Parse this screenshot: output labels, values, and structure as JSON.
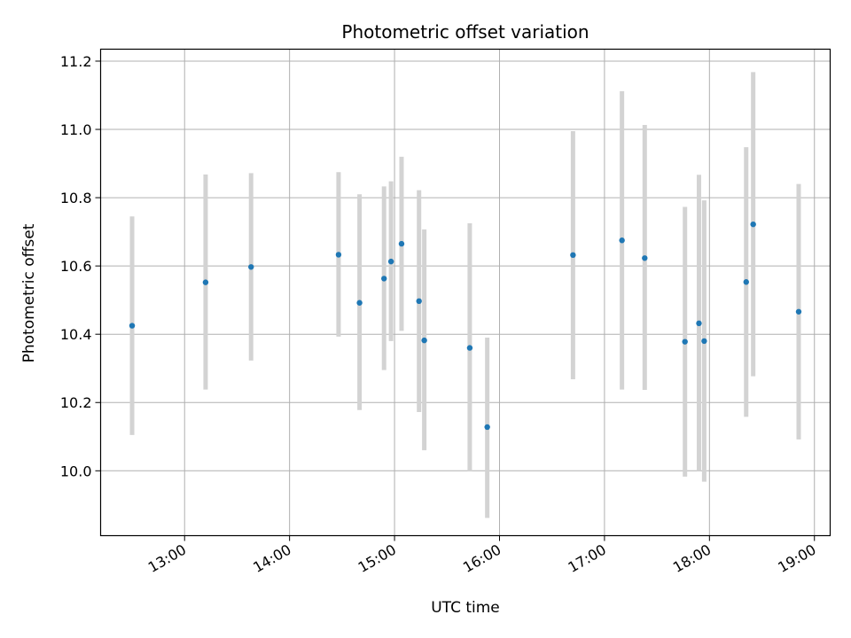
{
  "chart_data": {
    "type": "scatter",
    "title": "Photometric offset variation",
    "xlabel": "UTC time",
    "ylabel": "Photometric offset",
    "x_ticks": [
      "13:00",
      "14:00",
      "15:00",
      "16:00",
      "17:00",
      "18:00",
      "19:00"
    ],
    "y_ticks": [
      "10.0",
      "10.2",
      "10.4",
      "10.6",
      "10.8",
      "11.0",
      "11.2"
    ],
    "xlim": [
      "12:12",
      "19:09"
    ],
    "ylim": [
      9.81,
      11.235
    ],
    "grid": true,
    "colors": {
      "point": "#1f77b4",
      "errorbar": "#d3d3d3",
      "grid": "#b0b0b0"
    },
    "series": [
      {
        "points": [
          {
            "x": "12:30",
            "y": 10.425,
            "low": 10.105,
            "high": 10.745
          },
          {
            "x": "13:12",
            "y": 10.552,
            "low": 10.238,
            "high": 10.868
          },
          {
            "x": "13:38",
            "y": 10.597,
            "low": 10.323,
            "high": 10.872
          },
          {
            "x": "14:28",
            "y": 10.633,
            "low": 10.393,
            "high": 10.875
          },
          {
            "x": "14:40",
            "y": 10.492,
            "low": 10.178,
            "high": 10.81
          },
          {
            "x": "14:54",
            "y": 10.563,
            "low": 10.295,
            "high": 10.833
          },
          {
            "x": "14:58",
            "y": 10.613,
            "low": 10.38,
            "high": 10.848
          },
          {
            "x": "15:04",
            "y": 10.665,
            "low": 10.41,
            "high": 10.92
          },
          {
            "x": "15:14",
            "y": 10.497,
            "low": 10.172,
            "high": 10.822
          },
          {
            "x": "15:17",
            "y": 10.382,
            "low": 10.06,
            "high": 10.707
          },
          {
            "x": "15:43",
            "y": 10.36,
            "low": 9.998,
            "high": 10.725
          },
          {
            "x": "15:53",
            "y": 10.128,
            "low": 9.862,
            "high": 10.39
          },
          {
            "x": "16:42",
            "y": 10.632,
            "low": 10.268,
            "high": 10.995
          },
          {
            "x": "17:10",
            "y": 10.675,
            "low": 10.238,
            "high": 11.112
          },
          {
            "x": "17:23",
            "y": 10.623,
            "low": 10.237,
            "high": 11.013
          },
          {
            "x": "17:46",
            "y": 10.378,
            "low": 9.983,
            "high": 10.773
          },
          {
            "x": "17:54",
            "y": 10.432,
            "low": 10.0,
            "high": 10.867
          },
          {
            "x": "17:57",
            "y": 10.38,
            "low": 9.968,
            "high": 10.792
          },
          {
            "x": "18:21",
            "y": 10.553,
            "low": 10.158,
            "high": 10.948
          },
          {
            "x": "18:25",
            "y": 10.722,
            "low": 10.277,
            "high": 11.168
          },
          {
            "x": "18:51",
            "y": 10.466,
            "low": 10.092,
            "high": 10.84
          }
        ]
      }
    ]
  }
}
